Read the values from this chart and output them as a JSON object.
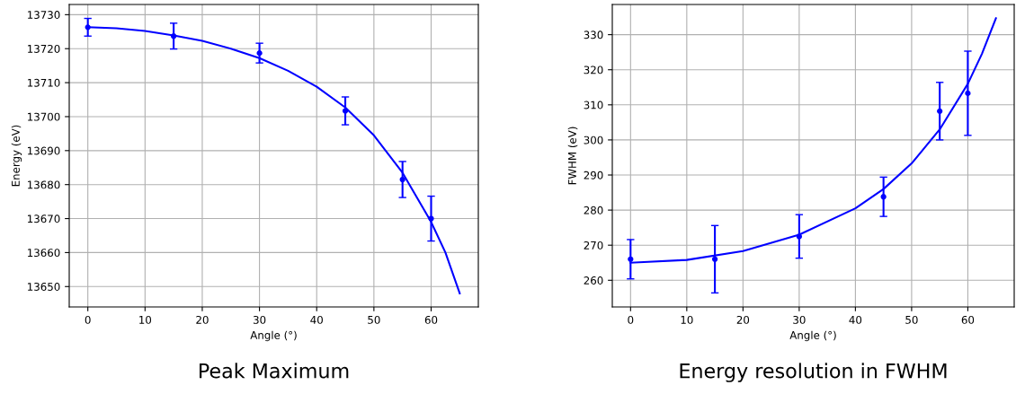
{
  "chart_data": [
    {
      "type": "scatter",
      "title": "Peak Maximum",
      "xlabel": "Angle (°)",
      "ylabel": "Energy (eV)",
      "xlim": [
        -3.25,
        68.25
      ],
      "ylim": [
        13644,
        13733
      ],
      "xticks": [
        0,
        10,
        20,
        30,
        40,
        50,
        60
      ],
      "yticks": [
        13650,
        13660,
        13670,
        13680,
        13690,
        13700,
        13710,
        13720,
        13730
      ],
      "grid": true,
      "series": [
        {
          "color": "#0000ff",
          "marker": "circle",
          "x": [
            0,
            15,
            30,
            45,
            55,
            60
          ],
          "values": [
            13726.3,
            13723.7,
            13718.7,
            13701.7,
            13681.5,
            13670
          ],
          "errors": [
            2.6,
            3.8,
            2.9,
            4.1,
            5.3,
            6.6
          ]
        },
        {
          "type": "line",
          "color": "#0000ff",
          "x": [
            0,
            5,
            10,
            15,
            20,
            25,
            30,
            35,
            40,
            45,
            50,
            55,
            60,
            62.5,
            65
          ],
          "values": [
            13726.3,
            13726.0,
            13725.2,
            13723.9,
            13722.3,
            13720.0,
            13717.2,
            13713.5,
            13708.8,
            13702.7,
            13694.5,
            13683.5,
            13669,
            13660,
            13648
          ]
        }
      ]
    },
    {
      "type": "scatter",
      "title": "Energy resolution in FWHM",
      "xlabel": "Angle (°)",
      "ylabel": "FWHM (eV)",
      "xlim": [
        -3.25,
        68.25
      ],
      "ylim": [
        252.4,
        338.6
      ],
      "xticks": [
        0,
        10,
        20,
        30,
        40,
        50,
        60
      ],
      "yticks": [
        260,
        270,
        280,
        290,
        300,
        310,
        320,
        330
      ],
      "grid": true,
      "series": [
        {
          "color": "#0000ff",
          "marker": "circle",
          "x": [
            0,
            15,
            30,
            45,
            55,
            60
          ],
          "values": [
            266,
            266,
            272.5,
            283.8,
            308.2,
            313.3
          ],
          "errors": [
            5.6,
            9.6,
            6.2,
            5.6,
            8.2,
            12
          ]
        },
        {
          "type": "line",
          "color": "#0000ff",
          "x": [
            0,
            10,
            20,
            30,
            40,
            45,
            50,
            55,
            60,
            62.5,
            65
          ],
          "values": [
            265,
            265.8,
            268.3,
            273,
            280.5,
            286,
            293.3,
            303,
            316,
            324.5,
            334.7
          ]
        }
      ]
    }
  ]
}
